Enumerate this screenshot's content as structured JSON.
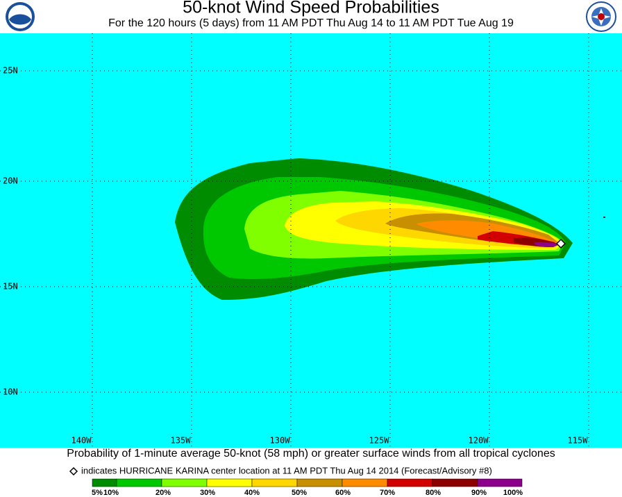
{
  "header": {
    "title": "50-knot Wind Speed Probabilities",
    "subtitle": "For the 120 hours (5 days) from 11 AM PDT Thu Aug 14 to 11 AM PDT Tue Aug 19"
  },
  "map": {
    "lat_labels": [
      "25N",
      "20N",
      "15N",
      "10N"
    ],
    "lon_labels": [
      "140W",
      "135W",
      "130W",
      "125W",
      "120W",
      "115W"
    ]
  },
  "footer": {
    "caption": "Probability of 1-minute average 50-knot (58 mph) or greater surface winds from all tropical cyclones",
    "center_note": "indicates HURRICANE KARINA center location at 11 AM PDT Thu Aug 14 2014 (Forecast/Advisory #8)"
  },
  "legend": {
    "colors": [
      "#008c00",
      "#00c800",
      "#80ff00",
      "#ffff00",
      "#ffd700",
      "#c89000",
      "#ff8c00",
      "#d20000",
      "#8c0000",
      "#8c008c"
    ],
    "labels": [
      "5%",
      "10%",
      "20%",
      "30%",
      "40%",
      "50%",
      "60%",
      "70%",
      "80%",
      "90%",
      "100%"
    ]
  }
}
